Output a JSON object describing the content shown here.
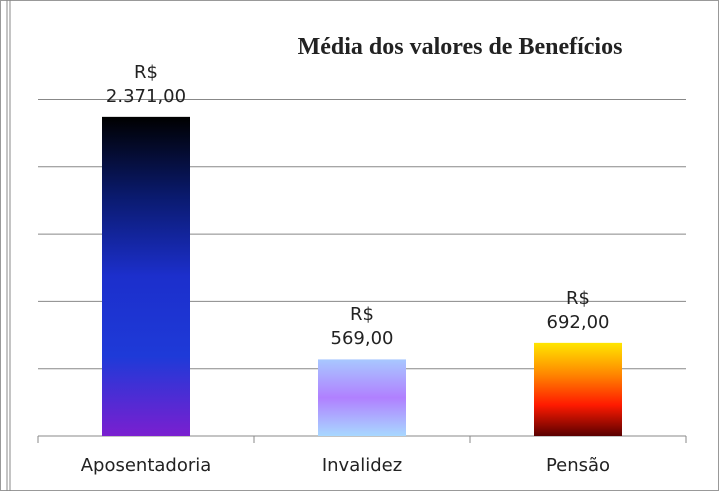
{
  "chart_data": {
    "type": "bar",
    "title": "Média dos valores de Benefícios",
    "categories": [
      "Aposentadoria",
      "Invalidez",
      "Pensão"
    ],
    "values": [
      2371,
      569,
      692
    ],
    "value_labels": [
      "R$ 2.371,00",
      "R$ 569,00",
      "R$ 692,00"
    ],
    "gradients": [
      [
        "#000000",
        "#0a1a6e",
        "#1c2fcc",
        "#1e3ad8",
        "#7a1fd0"
      ],
      [
        "#a8c8ff",
        "#b080ff",
        "#a8d8ff"
      ],
      [
        "#ffe600",
        "#ff8800",
        "#ff1a00",
        "#5a0000"
      ]
    ],
    "ylim": [
      0,
      2500
    ],
    "yticks": [
      0,
      500,
      1000,
      1500,
      2000,
      2500
    ],
    "grid": true
  }
}
